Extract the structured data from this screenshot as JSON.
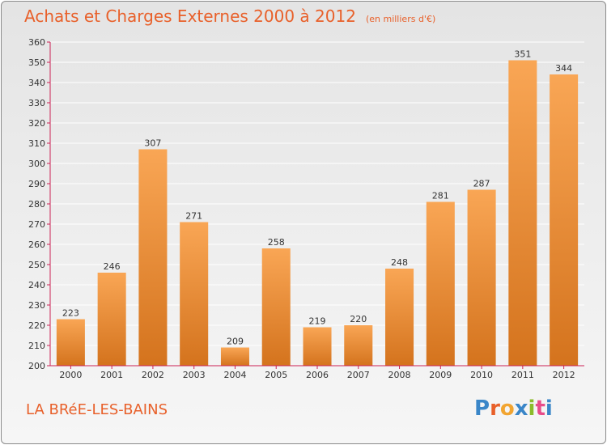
{
  "page": {
    "title": "Achats et Charges Externes 2000 à 2012",
    "unit_note": "(en milliers d'€)",
    "commune": "LA BRéE-LES-BAINS",
    "brand_letters": [
      "P",
      "r",
      "o",
      "x",
      "i",
      "t",
      "i"
    ],
    "brand_colors": [
      "#3a86c8",
      "#e8602a",
      "#f2a531",
      "#3a86c8",
      "#8bbb2b",
      "#e84c8a",
      "#3a86c8"
    ]
  },
  "colors": {
    "bar_top": "#f9a655",
    "bar_bottom": "#d4731d",
    "title": "#e8602a",
    "axis_line": "#cc2255",
    "grid": "#ffffff",
    "text": "#333333"
  },
  "chart_data": {
    "type": "bar",
    "title": "Achats et Charges Externes 2000 à 2012",
    "subtitle": "(en milliers d'€)",
    "xlabel": "",
    "ylabel": "",
    "categories": [
      "2000",
      "2001",
      "2002",
      "2003",
      "2004",
      "2005",
      "2006",
      "2007",
      "2008",
      "2009",
      "2010",
      "2011",
      "2012"
    ],
    "values": [
      223,
      246,
      307,
      271,
      209,
      258,
      219,
      220,
      248,
      281,
      287,
      351,
      344
    ],
    "ylim": [
      200,
      360
    ],
    "yticks": [
      200,
      210,
      220,
      230,
      240,
      250,
      260,
      270,
      280,
      290,
      300,
      310,
      320,
      330,
      340,
      350,
      360
    ],
    "grid": true,
    "legend": "none"
  }
}
